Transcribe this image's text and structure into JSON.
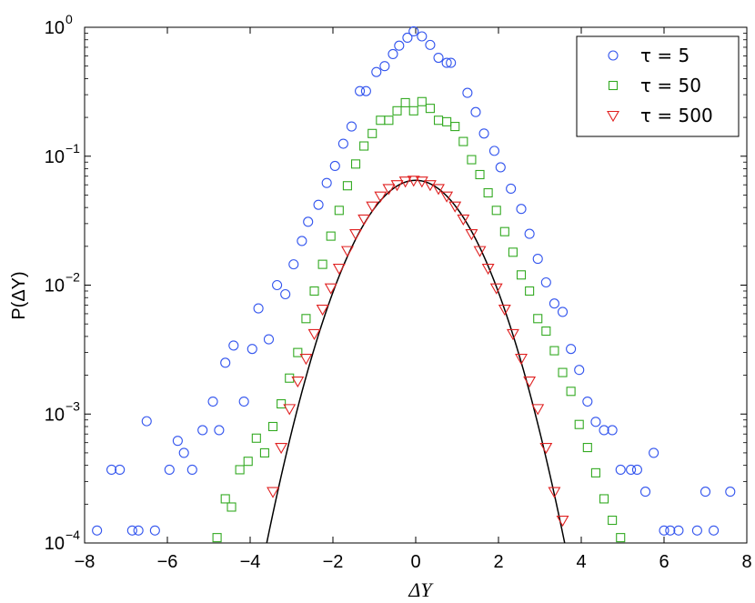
{
  "chart_data": {
    "type": "scatter",
    "xlabel": "ΔY",
    "ylabel": "P(ΔY)",
    "xlim": [
      -8,
      8
    ],
    "ylim": [
      0.0001,
      1
    ],
    "yscale": "log",
    "x_ticks": [
      "−8",
      "−6",
      "−4",
      "−2",
      "0",
      "2",
      "4",
      "6",
      "8"
    ],
    "y_ticks": [
      {
        "base": "10",
        "exp": "0"
      },
      {
        "base": "10",
        "exp": "−1"
      },
      {
        "base": "10",
        "exp": "−2"
      },
      {
        "base": "10",
        "exp": "−3"
      },
      {
        "base": "10",
        "exp": "−4"
      }
    ],
    "grid": false,
    "legend_position": "top-right",
    "series": [
      {
        "name": "τ = 5",
        "marker": "circle",
        "color": "#3355ee",
        "x": [
          -7.7,
          -7.35,
          -7.15,
          -6.85,
          -6.7,
          -6.5,
          -6.3,
          -5.95,
          -5.75,
          -5.6,
          -5.4,
          -5.15,
          -4.9,
          -4.75,
          -4.6,
          -4.4,
          -4.15,
          -3.95,
          -3.8,
          -3.55,
          -3.35,
          -3.15,
          -2.95,
          -2.75,
          -2.6,
          -2.35,
          -2.15,
          -1.95,
          -1.75,
          -1.55,
          -1.35,
          -1.2,
          -0.95,
          -0.75,
          -0.55,
          -0.4,
          -0.2,
          -0.05,
          0.15,
          0.35,
          0.55,
          0.75,
          0.85,
          1.25,
          1.45,
          1.65,
          1.9,
          2.05,
          2.3,
          2.55,
          2.75,
          2.95,
          3.15,
          3.35,
          3.55,
          3.75,
          3.95,
          4.15,
          4.35,
          4.55,
          4.75,
          4.95,
          5.2,
          5.35,
          5.55,
          5.75,
          6.0,
          6.15,
          6.35,
          6.8,
          7.0,
          7.2,
          7.6
        ],
        "y": [
          0.000125,
          0.00037,
          0.00037,
          0.000125,
          0.000125,
          0.00088,
          0.000125,
          0.00037,
          0.00062,
          0.0005,
          0.00037,
          0.00075,
          0.00125,
          0.00075,
          0.0025,
          0.0034,
          0.00125,
          0.0032,
          0.0066,
          0.0038,
          0.01,
          0.0085,
          0.0145,
          0.022,
          0.031,
          0.042,
          0.062,
          0.084,
          0.125,
          0.17,
          0.32,
          0.32,
          0.45,
          0.5,
          0.62,
          0.72,
          0.83,
          0.93,
          0.85,
          0.73,
          0.58,
          0.53,
          0.53,
          0.31,
          0.22,
          0.15,
          0.11,
          0.082,
          0.056,
          0.039,
          0.025,
          0.016,
          0.0105,
          0.0072,
          0.0062,
          0.0032,
          0.0022,
          0.00125,
          0.00087,
          0.00075,
          0.00075,
          0.00037,
          0.00037,
          0.00037,
          0.00025,
          0.0005,
          0.000125,
          0.000125,
          0.000125,
          0.000125,
          0.00025,
          0.000125,
          0.00025
        ]
      },
      {
        "name": "τ = 50",
        "marker": "square",
        "color": "#33aa22",
        "x": [
          -4.8,
          -4.6,
          -4.45,
          -4.25,
          -4.05,
          -3.85,
          -3.65,
          -3.45,
          -3.25,
          -3.05,
          -2.85,
          -2.65,
          -2.45,
          -2.25,
          -2.05,
          -1.85,
          -1.65,
          -1.45,
          -1.25,
          -1.05,
          -0.85,
          -0.65,
          -0.45,
          -0.25,
          -0.05,
          0.15,
          0.35,
          0.55,
          0.75,
          0.95,
          1.15,
          1.35,
          1.55,
          1.75,
          1.95,
          2.15,
          2.35,
          2.55,
          2.75,
          2.95,
          3.15,
          3.35,
          3.55,
          3.75,
          3.95,
          4.15,
          4.35,
          4.55,
          4.75,
          4.95
        ],
        "y": [
          0.00011,
          0.00022,
          0.00019,
          0.00037,
          0.00043,
          0.00065,
          0.0005,
          0.0008,
          0.0012,
          0.0019,
          0.003,
          0.0055,
          0.009,
          0.0145,
          0.024,
          0.038,
          0.059,
          0.087,
          0.12,
          0.15,
          0.19,
          0.19,
          0.225,
          0.26,
          0.225,
          0.265,
          0.235,
          0.19,
          0.185,
          0.17,
          0.13,
          0.094,
          0.072,
          0.052,
          0.038,
          0.026,
          0.018,
          0.012,
          0.009,
          0.0055,
          0.0044,
          0.0031,
          0.0021,
          0.0015,
          0.00083,
          0.00055,
          0.00035,
          0.00022,
          0.00015,
          0.00011
        ]
      },
      {
        "name": "τ = 500",
        "marker": "triangle-down",
        "color": "#e02020",
        "x": [
          -3.45,
          -3.25,
          -3.05,
          -2.85,
          -2.65,
          -2.45,
          -2.25,
          -2.05,
          -1.85,
          -1.65,
          -1.45,
          -1.25,
          -1.05,
          -0.85,
          -0.65,
          -0.45,
          -0.25,
          -0.05,
          0.15,
          0.35,
          0.55,
          0.75,
          0.95,
          1.15,
          1.35,
          1.55,
          1.75,
          1.95,
          2.15,
          2.35,
          2.55,
          2.75,
          2.95,
          3.15,
          3.35,
          3.55
        ],
        "y": [
          0.00025,
          0.00055,
          0.0011,
          0.0018,
          0.0027,
          0.0042,
          0.0065,
          0.0095,
          0.0135,
          0.0185,
          0.025,
          0.0325,
          0.041,
          0.049,
          0.056,
          0.06,
          0.064,
          0.065,
          0.064,
          0.06,
          0.056,
          0.049,
          0.041,
          0.0325,
          0.025,
          0.0185,
          0.0135,
          0.0095,
          0.0065,
          0.0042,
          0.0027,
          0.0018,
          0.0011,
          0.00055,
          0.00025,
          0.00015
        ]
      }
    ],
    "curve": {
      "type": "gaussian",
      "color": "#000000",
      "amplitude": 0.065,
      "sigma": 1.0
    }
  }
}
